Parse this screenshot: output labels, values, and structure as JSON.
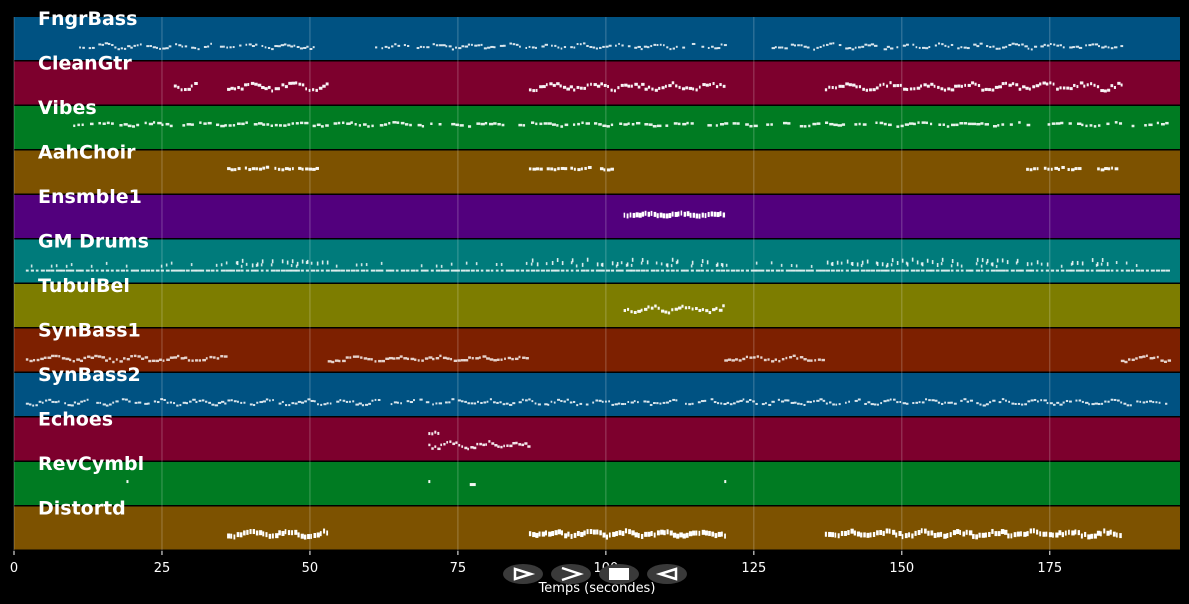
{
  "chart_data": {
    "type": "piano-roll",
    "xlabel": "Temps (secondes)",
    "xlim": [
      0,
      197
    ],
    "x_ticks": [
      0,
      25,
      50,
      75,
      100,
      125,
      150,
      175
    ],
    "x_tick_labels": [
      "0",
      "25",
      "50",
      "75",
      "100",
      "125",
      "150",
      "175"
    ],
    "grid": true,
    "tracks": [
      {
        "name": "FngrBass",
        "color": "#005282",
        "segments": [
          [
            11,
            51
          ],
          [
            61,
            120
          ],
          [
            128,
            187
          ]
        ],
        "style": "dense-low"
      },
      {
        "name": "CleanGtr",
        "color": "#7d002d",
        "segments": [
          [
            27,
            31
          ],
          [
            36,
            53
          ],
          [
            87,
            120
          ],
          [
            137,
            187
          ]
        ],
        "style": "wavy"
      },
      {
        "name": "Vibes",
        "color": "#007b22",
        "segments": [
          [
            10,
            195
          ]
        ],
        "style": "sparse"
      },
      {
        "name": "AahChoir",
        "color": "#7d5200",
        "segments": [
          [
            36,
            38
          ],
          [
            39,
            43
          ],
          [
            44,
            47
          ],
          [
            48,
            51
          ],
          [
            87,
            89
          ],
          [
            90,
            93
          ],
          [
            94,
            97
          ],
          [
            99,
            101
          ],
          [
            171,
            173
          ],
          [
            174,
            177
          ],
          [
            178,
            180
          ],
          [
            183,
            186
          ]
        ],
        "style": "short"
      },
      {
        "name": "Ensmble1",
        "color": "#52007d",
        "segments": [
          [
            103,
            120
          ]
        ],
        "style": "block"
      },
      {
        "name": "GM Drums",
        "color": "#007b7b",
        "segments": [
          [
            2,
            195
          ]
        ],
        "style": "drums"
      },
      {
        "name": "TubulBel",
        "color": "#7d7d00",
        "segments": [
          [
            103,
            120
          ]
        ],
        "style": "wavy"
      },
      {
        "name": "SynBass1",
        "color": "#7d2000",
        "segments": [
          [
            2,
            36
          ],
          [
            53,
            87
          ],
          [
            120,
            137
          ],
          [
            187,
            195
          ]
        ],
        "style": "low-stairs"
      },
      {
        "name": "SynBass2",
        "color": "#005282",
        "segments": [
          [
            2,
            195
          ]
        ],
        "style": "dense-low"
      },
      {
        "name": "Echoes",
        "color": "#7d002d",
        "segments": [
          [
            70,
            87
          ]
        ],
        "style": "echo"
      },
      {
        "name": "RevCymbl",
        "color": "#007b22",
        "notes": [
          19,
          70,
          77,
          120
        ],
        "style": "points"
      },
      {
        "name": "Distortd",
        "color": "#7d5200",
        "segments": [
          [
            36,
            53
          ],
          [
            87,
            120
          ],
          [
            137,
            187
          ]
        ],
        "style": "block-wavy"
      }
    ]
  },
  "controls": {
    "play_label": "play",
    "next_label": "next",
    "stop_label": "stop",
    "prev_label": "prev"
  }
}
